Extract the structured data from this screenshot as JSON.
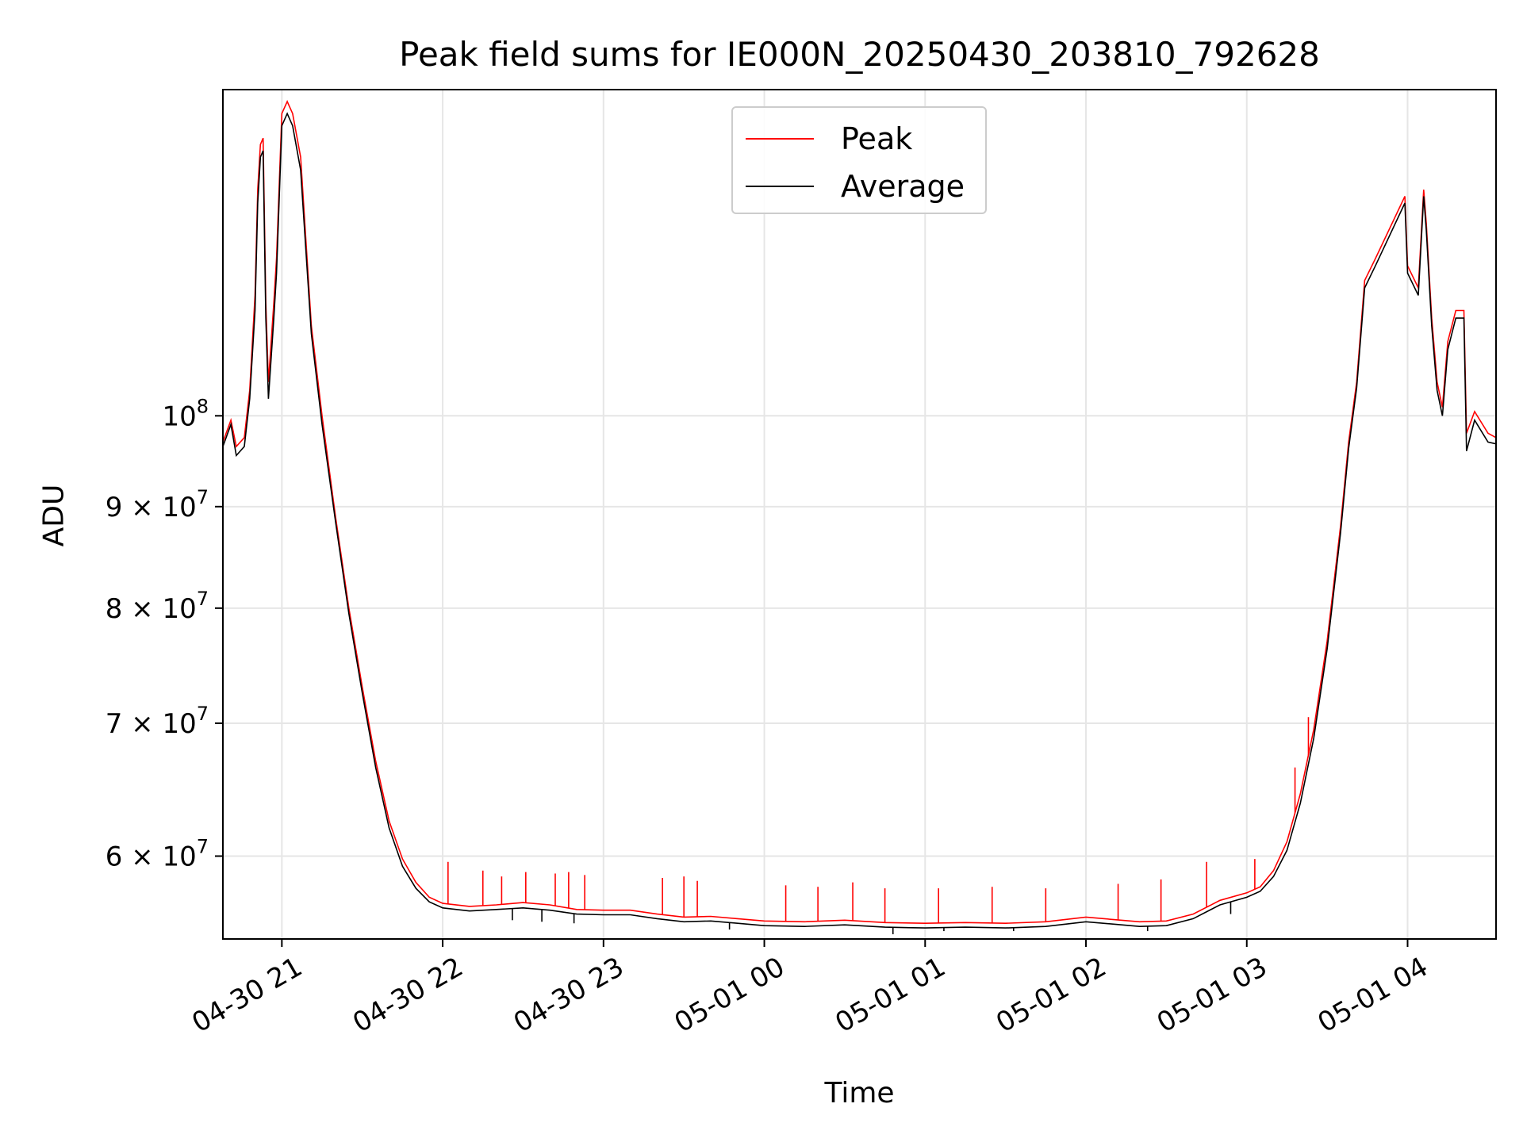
{
  "chart_data": {
    "type": "line",
    "title": "Peak field sums for IE000N_20250430_203810_792628",
    "xlabel": "Time",
    "ylabel": "ADU",
    "x_unit": "datetime",
    "xlim": [
      "2025-04-30 20:38",
      "2025-05-01 04:33"
    ],
    "ylim": [
      54500000,
      146000000
    ],
    "y_scale": "log",
    "grid": true,
    "legend_position": "top-center",
    "x_ticks": [
      {
        "t": "2025-04-30 21:00",
        "label": "04-30 21"
      },
      {
        "t": "2025-04-30 22:00",
        "label": "04-30 22"
      },
      {
        "t": "2025-04-30 23:00",
        "label": "04-30 23"
      },
      {
        "t": "2025-05-01 00:00",
        "label": "05-01 00"
      },
      {
        "t": "2025-05-01 01:00",
        "label": "05-01 01"
      },
      {
        "t": "2025-05-01 02:00",
        "label": "05-01 02"
      },
      {
        "t": "2025-05-01 03:00",
        "label": "05-01 03"
      },
      {
        "t": "2025-05-01 04:00",
        "label": "05-01 04"
      }
    ],
    "y_ticks": [
      {
        "value": 60000000,
        "label": "6 × 10",
        "exp": "7"
      },
      {
        "value": 70000000,
        "label": "7 × 10",
        "exp": "7"
      },
      {
        "value": 80000000,
        "label": "8 × 10",
        "exp": "7"
      },
      {
        "value": 90000000,
        "label": "9 × 10",
        "exp": "7"
      },
      {
        "value": 100000000,
        "label": "10",
        "exp": "8"
      }
    ],
    "series": [
      {
        "name": "Peak",
        "color": "#ff0000",
        "points": [
          [
            "2025-04-30 20:38",
            97000000.0
          ],
          [
            "2025-04-30 20:41",
            99500000.0
          ],
          [
            "2025-04-30 20:43",
            96500000.0
          ],
          [
            "2025-04-30 20:46",
            97500000.0
          ],
          [
            "2025-04-30 20:48",
            103000000.0
          ],
          [
            "2025-04-30 20:50",
            115000000.0
          ],
          [
            "2025-04-30 20:51",
            130000000.0
          ],
          [
            "2025-04-30 20:52",
            137000000.0
          ],
          [
            "2025-04-30 20:53",
            138000000.0
          ],
          [
            "2025-04-30 20:54",
            114000000.0
          ],
          [
            "2025-04-30 20:55",
            104000000.0
          ],
          [
            "2025-04-30 20:57",
            114000000.0
          ],
          [
            "2025-04-30 20:58",
            120000000.0
          ],
          [
            "2025-04-30 21:00",
            142000000.0
          ],
          [
            "2025-04-30 21:02",
            144000000.0
          ],
          [
            "2025-04-30 21:04",
            142000000.0
          ],
          [
            "2025-04-30 21:07",
            135000000.0
          ],
          [
            "2025-04-30 21:11",
            111000000.0
          ],
          [
            "2025-04-30 21:15",
            100000000.0
          ],
          [
            "2025-04-30 21:20",
            89000000.0
          ],
          [
            "2025-04-30 21:25",
            80000000.0
          ],
          [
            "2025-04-30 21:30",
            73000000.0
          ],
          [
            "2025-04-30 21:35",
            67000000.0
          ],
          [
            "2025-04-30 21:40",
            62500000.0
          ],
          [
            "2025-04-30 21:45",
            59800000.0
          ],
          [
            "2025-04-30 21:50",
            58200000.0
          ],
          [
            "2025-04-30 21:55",
            57200000.0
          ],
          [
            "2025-04-30 22:00",
            56800000.0
          ],
          [
            "2025-04-30 22:10",
            56600000.0
          ],
          [
            "2025-04-30 22:20",
            56700000.0
          ],
          [
            "2025-04-30 22:30",
            56850000.0
          ],
          [
            "2025-04-30 22:40",
            56700000.0
          ],
          [
            "2025-04-30 22:50",
            56400000.0
          ],
          [
            "2025-04-30 23:00",
            56350000.0
          ],
          [
            "2025-04-30 23:10",
            56350000.0
          ],
          [
            "2025-04-30 23:20",
            56100000.0
          ],
          [
            "2025-04-30 23:30",
            55900000.0
          ],
          [
            "2025-04-30 23:40",
            55950000.0
          ],
          [
            "2025-04-30 23:50",
            55800000.0
          ],
          [
            "2025-05-01 00:00",
            55650000.0
          ],
          [
            "2025-05-01 00:15",
            55600000.0
          ],
          [
            "2025-05-01 00:30",
            55700000.0
          ],
          [
            "2025-05-01 00:45",
            55550000.0
          ],
          [
            "2025-05-01 01:00",
            55500000.0
          ],
          [
            "2025-05-01 01:15",
            55550000.0
          ],
          [
            "2025-05-01 01:30",
            55500000.0
          ],
          [
            "2025-05-01 01:45",
            55600000.0
          ],
          [
            "2025-05-01 02:00",
            55900000.0
          ],
          [
            "2025-05-01 02:10",
            55750000.0
          ],
          [
            "2025-05-01 02:20",
            55600000.0
          ],
          [
            "2025-05-01 02:30",
            55650000.0
          ],
          [
            "2025-05-01 02:40",
            56100000.0
          ],
          [
            "2025-05-01 02:50",
            57000000.0
          ],
          [
            "2025-05-01 03:00",
            57500000.0
          ],
          [
            "2025-05-01 03:05",
            57900000.0
          ],
          [
            "2025-05-01 03:10",
            59000000.0
          ],
          [
            "2025-05-01 03:15",
            61000000.0
          ],
          [
            "2025-05-01 03:20",
            64500000.0
          ],
          [
            "2025-05-01 03:25",
            69500000.0
          ],
          [
            "2025-05-01 03:30",
            77000000.0
          ],
          [
            "2025-05-01 03:35",
            88000000.0
          ],
          [
            "2025-05-01 03:38",
            97000000.0
          ],
          [
            "2025-05-01 03:41",
            104000000.0
          ],
          [
            "2025-05-01 03:44",
            117000000.0
          ],
          [
            "2025-05-01 03:48",
            120000000.0
          ],
          [
            "2025-05-01 03:59",
            129000000.0
          ],
          [
            "2025-05-01 04:00",
            119000000.0
          ],
          [
            "2025-05-01 04:04",
            116000000.0
          ],
          [
            "2025-05-01 04:06",
            130000000.0
          ],
          [
            "2025-05-01 04:07",
            125000000.0
          ],
          [
            "2025-05-01 04:09",
            112000000.0
          ],
          [
            "2025-05-01 04:11",
            104000000.0
          ],
          [
            "2025-05-01 04:13",
            101000000.0
          ],
          [
            "2025-05-01 04:15",
            109000000.0
          ],
          [
            "2025-05-01 04:18",
            113000000.0
          ],
          [
            "2025-05-01 04:21",
            113000000.0
          ],
          [
            "2025-05-01 04:22",
            98000000.0
          ],
          [
            "2025-05-01 04:25",
            100500000.0
          ],
          [
            "2025-05-01 04:30",
            98000000.0
          ],
          [
            "2025-05-01 04:33",
            97500000.0
          ]
        ],
        "spikes": [
          [
            "2025-04-30 22:02",
            59600000.0
          ],
          [
            "2025-04-30 22:15",
            59000000.0
          ],
          [
            "2025-04-30 22:22",
            58600000.0
          ],
          [
            "2025-04-30 22:31",
            58900000.0
          ],
          [
            "2025-04-30 22:42",
            58800000.0
          ],
          [
            "2025-04-30 22:47",
            58900000.0
          ],
          [
            "2025-04-30 22:53",
            58700000.0
          ],
          [
            "2025-04-30 23:22",
            58500000.0
          ],
          [
            "2025-04-30 23:30",
            58600000.0
          ],
          [
            "2025-04-30 23:35",
            58300000.0
          ],
          [
            "2025-05-01 00:08",
            58000000.0
          ],
          [
            "2025-05-01 00:20",
            57900000.0
          ],
          [
            "2025-05-01 00:33",
            58200000.0
          ],
          [
            "2025-05-01 00:45",
            57800000.0
          ],
          [
            "2025-05-01 01:05",
            57800000.0
          ],
          [
            "2025-05-01 01:25",
            57900000.0
          ],
          [
            "2025-05-01 01:45",
            57800000.0
          ],
          [
            "2025-05-01 02:12",
            58100000.0
          ],
          [
            "2025-05-01 02:28",
            58400000.0
          ],
          [
            "2025-05-01 02:45",
            59600000.0
          ],
          [
            "2025-05-01 03:03",
            59800000.0
          ],
          [
            "2025-05-01 03:18",
            66500000.0
          ],
          [
            "2025-05-01 03:23",
            70500000.0
          ]
        ]
      },
      {
        "name": "Average",
        "color": "#000000",
        "points": [
          [
            "2025-04-30 20:38",
            96500000.0
          ],
          [
            "2025-04-30 20:41",
            99000000.0
          ],
          [
            "2025-04-30 20:43",
            95500000.0
          ],
          [
            "2025-04-30 20:46",
            96500000.0
          ],
          [
            "2025-04-30 20:48",
            102000000.0
          ],
          [
            "2025-04-30 20:50",
            113000000.0
          ],
          [
            "2025-04-30 20:51",
            128000000.0
          ],
          [
            "2025-04-30 20:52",
            135000000.0
          ],
          [
            "2025-04-30 20:53",
            136000000.0
          ],
          [
            "2025-04-30 20:54",
            112000000.0
          ],
          [
            "2025-04-30 20:55",
            102000000.0
          ],
          [
            "2025-04-30 20:57",
            112000000.0
          ],
          [
            "2025-04-30 20:58",
            118000000.0
          ],
          [
            "2025-04-30 21:00",
            140000000.0
          ],
          [
            "2025-04-30 21:02",
            142000000.0
          ],
          [
            "2025-04-30 21:04",
            140000000.0
          ],
          [
            "2025-04-30 21:07",
            133000000.0
          ],
          [
            "2025-04-30 21:11",
            110000000.0
          ],
          [
            "2025-04-30 21:15",
            99000000.0
          ],
          [
            "2025-04-30 21:20",
            88500000.0
          ],
          [
            "2025-04-30 21:25",
            79500000.0
          ],
          [
            "2025-04-30 21:30",
            72500000.0
          ],
          [
            "2025-04-30 21:35",
            66500000.0
          ],
          [
            "2025-04-30 21:40",
            62000000.0
          ],
          [
            "2025-04-30 21:45",
            59300000.0
          ],
          [
            "2025-04-30 21:50",
            57800000.0
          ],
          [
            "2025-04-30 21:55",
            56900000.0
          ],
          [
            "2025-04-30 22:00",
            56500000.0
          ],
          [
            "2025-04-30 22:10",
            56300000.0
          ],
          [
            "2025-04-30 22:20",
            56400000.0
          ],
          [
            "2025-04-30 22:30",
            56500000.0
          ],
          [
            "2025-04-30 22:40",
            56350000.0
          ],
          [
            "2025-04-30 22:50",
            56100000.0
          ],
          [
            "2025-04-30 23:00",
            56050000.0
          ],
          [
            "2025-04-30 23:10",
            56050000.0
          ],
          [
            "2025-04-30 23:20",
            55800000.0
          ],
          [
            "2025-04-30 23:30",
            55600000.0
          ],
          [
            "2025-04-30 23:40",
            55650000.0
          ],
          [
            "2025-04-30 23:50",
            55500000.0
          ],
          [
            "2025-05-01 00:00",
            55350000.0
          ],
          [
            "2025-05-01 00:15",
            55300000.0
          ],
          [
            "2025-05-01 00:30",
            55400000.0
          ],
          [
            "2025-05-01 00:45",
            55250000.0
          ],
          [
            "2025-05-01 01:00",
            55200000.0
          ],
          [
            "2025-05-01 01:15",
            55250000.0
          ],
          [
            "2025-05-01 01:30",
            55200000.0
          ],
          [
            "2025-05-01 01:45",
            55300000.0
          ],
          [
            "2025-05-01 02:00",
            55600000.0
          ],
          [
            "2025-05-01 02:10",
            55450000.0
          ],
          [
            "2025-05-01 02:20",
            55300000.0
          ],
          [
            "2025-05-01 02:30",
            55350000.0
          ],
          [
            "2025-05-01 02:40",
            55800000.0
          ],
          [
            "2025-05-01 02:50",
            56700000.0
          ],
          [
            "2025-05-01 03:00",
            57200000.0
          ],
          [
            "2025-05-01 03:05",
            57600000.0
          ],
          [
            "2025-05-01 03:10",
            58600000.0
          ],
          [
            "2025-05-01 03:15",
            60400000.0
          ],
          [
            "2025-05-01 03:20",
            63800000.0
          ],
          [
            "2025-05-01 03:25",
            68800000.0
          ],
          [
            "2025-05-01 03:30",
            76300000.0
          ],
          [
            "2025-05-01 03:35",
            87300000.0
          ],
          [
            "2025-05-01 03:38",
            96300000.0
          ],
          [
            "2025-05-01 03:41",
            103300000.0
          ],
          [
            "2025-05-01 03:44",
            116000000.0
          ],
          [
            "2025-05-01 03:48",
            119000000.0
          ],
          [
            "2025-05-01 03:59",
            128000000.0
          ],
          [
            "2025-05-01 04:00",
            118000000.0
          ],
          [
            "2025-05-01 04:04",
            115000000.0
          ],
          [
            "2025-05-01 04:06",
            129000000.0
          ],
          [
            "2025-05-01 04:07",
            124000000.0
          ],
          [
            "2025-05-01 04:09",
            111000000.0
          ],
          [
            "2025-05-01 04:11",
            103000000.0
          ],
          [
            "2025-05-01 04:13",
            100000000.0
          ],
          [
            "2025-05-01 04:15",
            108000000.0
          ],
          [
            "2025-05-01 04:18",
            112000000.0
          ],
          [
            "2025-05-01 04:21",
            112000000.0
          ],
          [
            "2025-05-01 04:22",
            96000000.0
          ],
          [
            "2025-05-01 04:25",
            99500000.0
          ],
          [
            "2025-05-01 04:30",
            97000000.0
          ],
          [
            "2025-05-01 04:33",
            96800000.0
          ]
        ],
        "dips": [
          [
            "2025-04-30 22:26",
            55700000.0
          ],
          [
            "2025-04-30 22:37",
            55600000.0
          ],
          [
            "2025-04-30 22:49",
            55500000.0
          ],
          [
            "2025-04-30 23:47",
            55100000.0
          ],
          [
            "2025-05-01 00:48",
            54800000.0
          ],
          [
            "2025-05-01 01:07",
            55000000.0
          ],
          [
            "2025-05-01 01:33",
            55000000.0
          ],
          [
            "2025-05-01 02:23",
            55000000.0
          ],
          [
            "2025-05-01 02:54",
            56100000.0
          ]
        ]
      }
    ]
  }
}
